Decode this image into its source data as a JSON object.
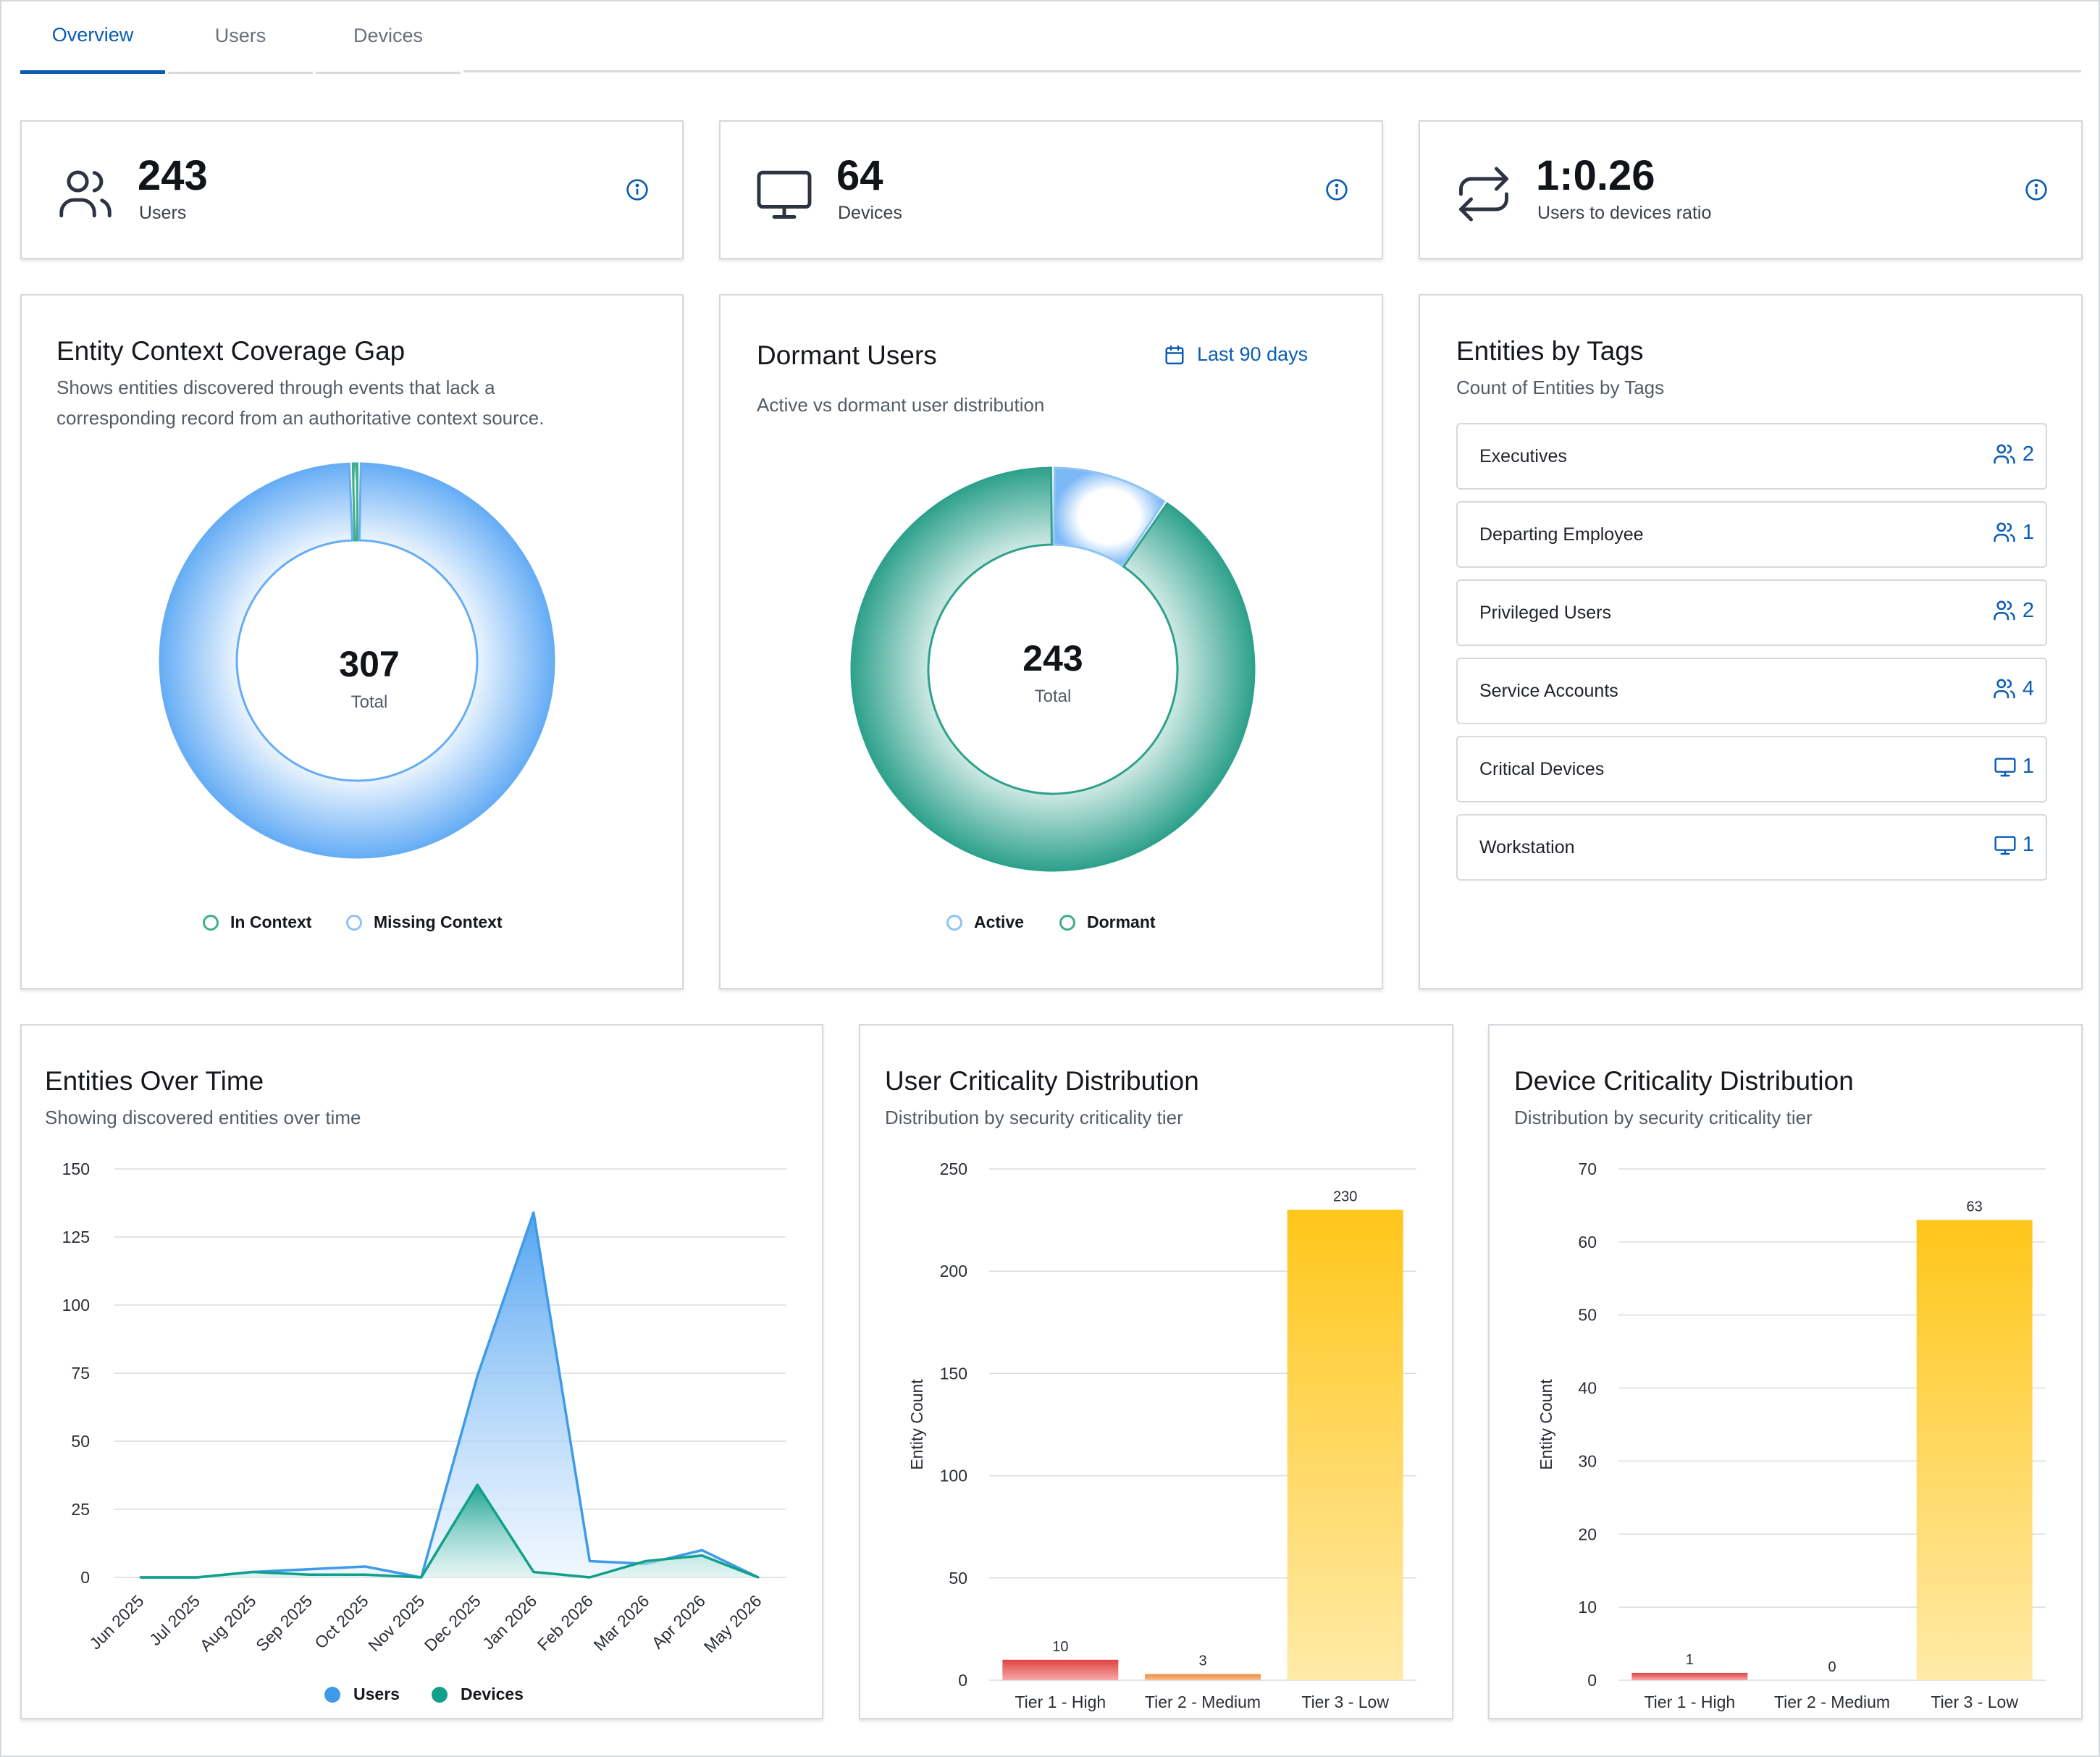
{
  "tabs": [
    {
      "label": "Overview",
      "active": true
    },
    {
      "label": "Users",
      "active": false
    },
    {
      "label": "Devices",
      "active": false
    }
  ],
  "stats": {
    "users": {
      "value": "243",
      "label": "Users",
      "icon": "users-icon"
    },
    "devices": {
      "value": "64",
      "label": "Devices",
      "icon": "monitor-icon"
    },
    "ratio": {
      "value": "1:0.26",
      "label": "Users to devices ratio",
      "icon": "swap-arrows-icon"
    }
  },
  "coverage": {
    "title": "Entity Context Coverage Gap",
    "subtitle_line1": "Shows entities discovered through events that lack a",
    "subtitle_line2": "corresponding record from an authoritative context source.",
    "total": "307",
    "total_label": "Total",
    "legend": [
      {
        "label": "In Context",
        "color": "#3fae8c"
      },
      {
        "label": "Missing Context",
        "color": "#8fc3f6"
      }
    ]
  },
  "dormant": {
    "title": "Dormant Users",
    "range_label": "Last 90 days",
    "subtitle": "Active vs dormant user distribution",
    "total": "243",
    "total_label": "Total",
    "legend": [
      {
        "label": "Active",
        "color": "#8fc3f6"
      },
      {
        "label": "Dormant",
        "color": "#3fae8c"
      }
    ]
  },
  "tags": {
    "title": "Entities by Tags",
    "subtitle": "Count of Entities by Tags",
    "items": [
      {
        "label": "Executives",
        "count": "2",
        "icon": "users-icon"
      },
      {
        "label": "Departing Employee",
        "count": "1",
        "icon": "users-icon"
      },
      {
        "label": "Privileged Users",
        "count": "2",
        "icon": "users-icon"
      },
      {
        "label": "Service Accounts",
        "count": "4",
        "icon": "users-icon"
      },
      {
        "label": "Critical Devices",
        "count": "1",
        "icon": "monitor-icon"
      },
      {
        "label": "Workstation",
        "count": "1",
        "icon": "monitor-icon"
      }
    ]
  },
  "over_time": {
    "title": "Entities Over Time",
    "subtitle": "Showing discovered entities over time",
    "legend": [
      {
        "label": "Users",
        "color": "#3f9be8"
      },
      {
        "label": "Devices",
        "color": "#11a08a"
      }
    ]
  },
  "user_crit": {
    "title": "User Criticality Distribution",
    "subtitle": "Distribution by security criticality tier"
  },
  "device_crit": {
    "title": "Device Criticality Distribution",
    "subtitle": "Distribution by security criticality tier"
  },
  "chart_data": [
    {
      "type": "pie",
      "title": "Entity Context Coverage Gap",
      "labels": [
        "In Context",
        "Missing Context"
      ],
      "values": [
        2,
        305
      ],
      "total": 307
    },
    {
      "type": "pie",
      "title": "Dormant Users",
      "labels": [
        "Active",
        "Dormant"
      ],
      "values": [
        23,
        220
      ],
      "total": 243
    },
    {
      "type": "area",
      "title": "Entities Over Time",
      "categories": [
        "Jun 2025",
        "Jul 2025",
        "Aug 2025",
        "Sep 2025",
        "Oct 2025",
        "Nov 2025",
        "Dec 2025",
        "Jan 2026",
        "Feb 2026",
        "Mar 2026",
        "Apr 2026",
        "May 2026"
      ],
      "series": [
        {
          "name": "Users",
          "values": [
            0,
            0,
            2,
            3,
            4,
            0,
            74,
            134,
            6,
            5,
            10,
            0
          ],
          "color": "#3f9be8"
        },
        {
          "name": "Devices",
          "values": [
            0,
            0,
            2,
            1,
            1,
            0,
            34,
            2,
            0,
            6,
            8,
            0
          ],
          "color": "#11a08a"
        }
      ],
      "ylim": [
        0,
        150
      ],
      "yticks": [
        0,
        25,
        50,
        75,
        100,
        125,
        150
      ],
      "grid": true,
      "legend": "bottom"
    },
    {
      "type": "bar",
      "title": "User Criticality Distribution",
      "categories": [
        "Tier 1 - High",
        "Tier 2 - Medium",
        "Tier 3 - Low"
      ],
      "values": [
        10,
        3,
        230
      ],
      "colors": [
        "#e04444",
        "#f08a3a",
        "#ffc61a"
      ],
      "ylabel": "Entity Count",
      "ylim": [
        0,
        250
      ],
      "yticks": [
        0,
        50,
        100,
        150,
        200,
        250
      ],
      "grid": true
    },
    {
      "type": "bar",
      "title": "Device Criticality Distribution",
      "categories": [
        "Tier 1 - High",
        "Tier 2 - Medium",
        "Tier 3 - Low"
      ],
      "values": [
        1,
        0,
        63
      ],
      "colors": [
        "#e04444",
        "#f08a3a",
        "#ffc61a"
      ],
      "ylabel": "Entity Count",
      "ylim": [
        0,
        70
      ],
      "yticks": [
        0,
        10,
        20,
        30,
        40,
        50,
        60,
        70
      ],
      "grid": true
    }
  ]
}
